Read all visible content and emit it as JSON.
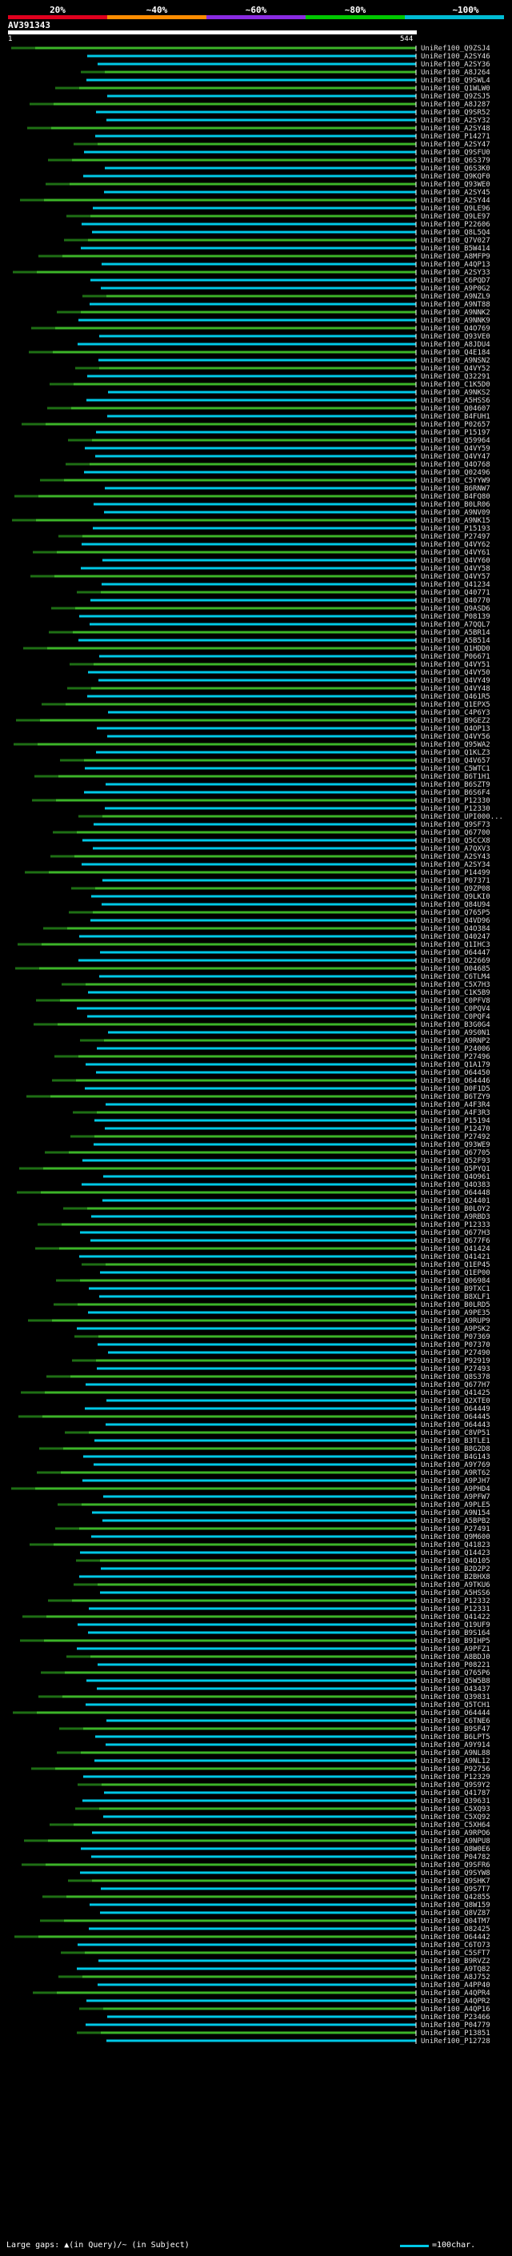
{
  "query": {
    "name": "AV391343",
    "start": "1",
    "end": "544"
  },
  "scale": {
    "labels": [
      "20%",
      "~40%",
      "~60%",
      "~80%",
      "~100%"
    ],
    "colors": [
      "#e0001e",
      "#ff8c00",
      "#8a2be2",
      "#00c800",
      "#00bcd4"
    ]
  },
  "hits": [
    "UniRef100_Q9ZSJ4",
    "UniRef100_A2SY46",
    "UniRef100_A2SY36",
    "UniRef100_A8J264",
    "UniRef100_Q9SWL4",
    "UniRef100_Q1WLW0",
    "UniRef100_Q9ZSJ5",
    "UniRef100_A8J287",
    "UniRef100_Q9SR52",
    "UniRef100_A2SY32",
    "UniRef100_A2SY48",
    "UniRef100_P14271",
    "UniRef100_A2SY47",
    "UniRef100_Q9SFU0",
    "UniRef100_Q6S379",
    "UniRef100_Q6S3K0",
    "UniRef100_Q9KQF0",
    "UniRef100_Q93WE0",
    "UniRef100_A2SY45",
    "UniRef100_A2SY44",
    "UniRef100_Q9LE96",
    "UniRef100_Q9LE97",
    "UniRef100_P22606",
    "UniRef100_Q8L5Q4",
    "UniRef100_Q7V027",
    "UniRef100_B5W414",
    "UniRef100_A8MFP9",
    "UniRef100_A4QP13",
    "UniRef100_A2SY33",
    "UniRef100_C6PQD7",
    "UniRef100_A9P0G2",
    "UniRef100_A9NZL9",
    "UniRef100_A9NT88",
    "UniRef100_A9NNK2",
    "UniRef100_A9NNK9",
    "UniRef100_Q4O769",
    "UniRef100_Q93VE0",
    "UniRef100_A8JDU4",
    "UniRef100_Q4E184",
    "UniRef100_A9NSN2",
    "UniRef100_Q4VY52",
    "UniRef100_Q32291",
    "UniRef100_C1K5D0",
    "UniRef100_A9NKS2",
    "UniRef100_A5HSS6",
    "UniRef100_Q04607",
    "UniRef100_B4FUH1",
    "UniRef100_P02657",
    "UniRef100_P15197",
    "UniRef100_Q59964",
    "UniRef100_Q4VY59",
    "UniRef100_Q4VY47",
    "UniRef100_Q4O768",
    "UniRef100_Q02496",
    "UniRef100_C5YYW9",
    "UniRef100_B6RNW7",
    "UniRef100_B4FQ80",
    "UniRef100_B0LR06",
    "UniRef100_A9NV09",
    "UniRef100_A9NK15",
    "UniRef100_P15193",
    "UniRef100_P27497",
    "UniRef100_Q4VY62",
    "UniRef100_Q4VY61",
    "UniRef100_Q4VY60",
    "UniRef100_Q4VY58",
    "UniRef100_Q4VY57",
    "UniRef100_Q41234",
    "UniRef100_Q40771",
    "UniRef100_Q40770",
    "UniRef100_Q9ASD6",
    "UniRef100_P08139",
    "UniRef100_A7QQL7",
    "UniRef100_A5BR14",
    "UniRef100_A5B514",
    "UniRef100_Q1HDD0",
    "UniRef100_P06671",
    "UniRef100_Q4VY51",
    "UniRef100_Q4VY50",
    "UniRef100_Q4VY49",
    "UniRef100_Q4VY48",
    "UniRef100_Q461R5",
    "UniRef100_Q1EPX5",
    "UniRef100_C4P6Y3",
    "UniRef100_B9GEZ2",
    "UniRef100_Q4OP13",
    "UniRef100_Q4VY56",
    "UniRef100_Q95WA2",
    "UniRef100_Q1KLZ3",
    "UniRef100_Q4V657",
    "UniRef100_C5WTC1",
    "UniRef100_B6T1H1",
    "UniRef100_B6SZT9",
    "UniRef100_B6S6F4",
    "UniRef100_P12330",
    "UniRef100_P12330",
    "UniRef100_UPI000...",
    "UniRef100_Q9SF73",
    "UniRef100_Q67700",
    "UniRef100_Q5CCX8",
    "UniRef100_A7QXV3",
    "UniRef100_A2SY43",
    "UniRef100_A2SY34",
    "UniRef100_P14499",
    "UniRef100_P07371",
    "UniRef100_Q9ZP08",
    "UniRef100_Q9LKI0",
    "UniRef100_Q84U94",
    "UniRef100_Q765P5",
    "UniRef100_Q4VD96",
    "UniRef100_Q4O384",
    "UniRef100_Q40247",
    "UniRef100_Q1IHC3",
    "UniRef100_O64447",
    "UniRef100_O22669",
    "UniRef100_O04685",
    "UniRef100_C6TLM4",
    "UniRef100_C5X7H3",
    "UniRef100_C1K5B9",
    "UniRef100_C0PFV8",
    "UniRef100_C0PQV4",
    "UniRef100_C0PQF4",
    "UniRef100_B3G0G4",
    "UniRef100_A9S0N1",
    "UniRef100_A9RNP2",
    "UniRef100_P24006",
    "UniRef100_P27496",
    "UniRef100_Q1A179",
    "UniRef100_O64450",
    "UniRef100_O64446",
    "UniRef100_D0F1D5",
    "UniRef100_B6TZY9",
    "UniRef100_A4F3R4",
    "UniRef100_A4F3R3",
    "UniRef100_P15194",
    "UniRef100_P12470",
    "UniRef100_P27492",
    "UniRef100_Q93WE9",
    "UniRef100_Q67705",
    "UniRef100_Q52F93",
    "UniRef100_Q5PYQ1",
    "UniRef100_Q4O961",
    "UniRef100_Q4O383",
    "UniRef100_O64448",
    "UniRef100_Q24401",
    "UniRef100_B0LOY2",
    "UniRef100_A9RBD3",
    "UniRef100_P12333",
    "UniRef100_Q677H3",
    "UniRef100_Q677F6",
    "UniRef100_Q41424",
    "UniRef100_Q41421",
    "UniRef100_Q1EP45",
    "UniRef100_Q1EP00",
    "UniRef100_Q06984",
    "UniRef100_B9TXC1",
    "UniRef100_B8XLF1",
    "UniRef100_B0LRD5",
    "UniRef100_A9PE35",
    "UniRef100_A9RUP9",
    "UniRef100_A9PSK2",
    "UniRef100_P07369",
    "UniRef100_P07370",
    "UniRef100_P27490",
    "UniRef100_P92919",
    "UniRef100_P27493",
    "UniRef100_Q8S378",
    "UniRef100_Q677H7",
    "UniRef100_Q41425",
    "UniRef100_Q2XTE0",
    "UniRef100_O64449",
    "UniRef100_O64445",
    "UniRef100_O64443",
    "UniRef100_C8VP51",
    "UniRef100_B3TLE1",
    "UniRef100_B8G2D8",
    "UniRef100_B4G143",
    "UniRef100_A9Y769",
    "UniRef100_A9RT62",
    "UniRef100_A9PJH7",
    "UniRef100_A9PHD4",
    "UniRef100_A9PFW7",
    "UniRef100_A9PLE5",
    "UniRef100_A9N154",
    "UniRef100_A5BPB2",
    "UniRef100_P27491",
    "UniRef100_Q9M600",
    "UniRef100_Q41823",
    "UniRef100_Q14423",
    "UniRef100_Q4O105",
    "UniRef100_B2D2P2",
    "UniRef100_B2BHX8",
    "UniRef100_A9TKU6",
    "UniRef100_A5HSS6",
    "UniRef100_P12332",
    "UniRef100_P12331",
    "UniRef100_Q41422",
    "UniRef100_Q19UF9",
    "UniRef100_B9S164",
    "UniRef100_B9IHP5",
    "UniRef100_A9PFZ1",
    "UniRef100_A8BDJ0",
    "UniRef100_P08221",
    "UniRef100_Q765P6",
    "UniRef100_Q5W5B8",
    "UniRef100_O43437",
    "UniRef100_Q39831",
    "UniRef100_Q5TCH1",
    "UniRef100_O64444",
    "UniRef100_C6TNE6",
    "UniRef100_B9SF47",
    "UniRef100_B6LPT5",
    "UniRef100_A9Y914",
    "UniRef100_A9NL88",
    "UniRef100_A9NL12",
    "UniRef100_P92756",
    "UniRef100_P12329",
    "UniRef100_Q9S9Y2",
    "UniRef100_Q41787",
    "UniRef100_Q39631",
    "UniRef100_C5XQ93",
    "UniRef100_C5XQ92",
    "UniRef100_C5XH64",
    "UniRef100_A9RPO6",
    "UniRef100_A9NPU8",
    "UniRef100_Q8W0E6",
    "UniRef100_P04782",
    "UniRef100_Q9SFR6",
    "UniRef100_Q9SYW8",
    "UniRef100_Q9SHK7",
    "UniRef100_Q9S7T7",
    "UniRef100_Q42855",
    "UniRef100_Q8W159",
    "UniRef100_Q8VZ87",
    "UniRef100_Q04TM7",
    "UniRef100_O82425",
    "UniRef100_O64442",
    "UniRef100_C6TO73",
    "UniRef100_C5SFT7",
    "UniRef100_B9RVZ2",
    "UniRef100_A9TQ82",
    "UniRef100_A8J752",
    "UniRef100_A4PP40",
    "UniRef100_A4QPR4",
    "UniRef100_A4QPR2",
    "UniRef100_A4QP16",
    "UniRef100_P23466",
    "UniRef100_P04779",
    "UniRef100_P13851",
    "UniRef100_P12728"
  ],
  "legend": {
    "left": "Large gaps: ▲(in Query)/~ (in Subject)",
    "right": "=100char."
  }
}
